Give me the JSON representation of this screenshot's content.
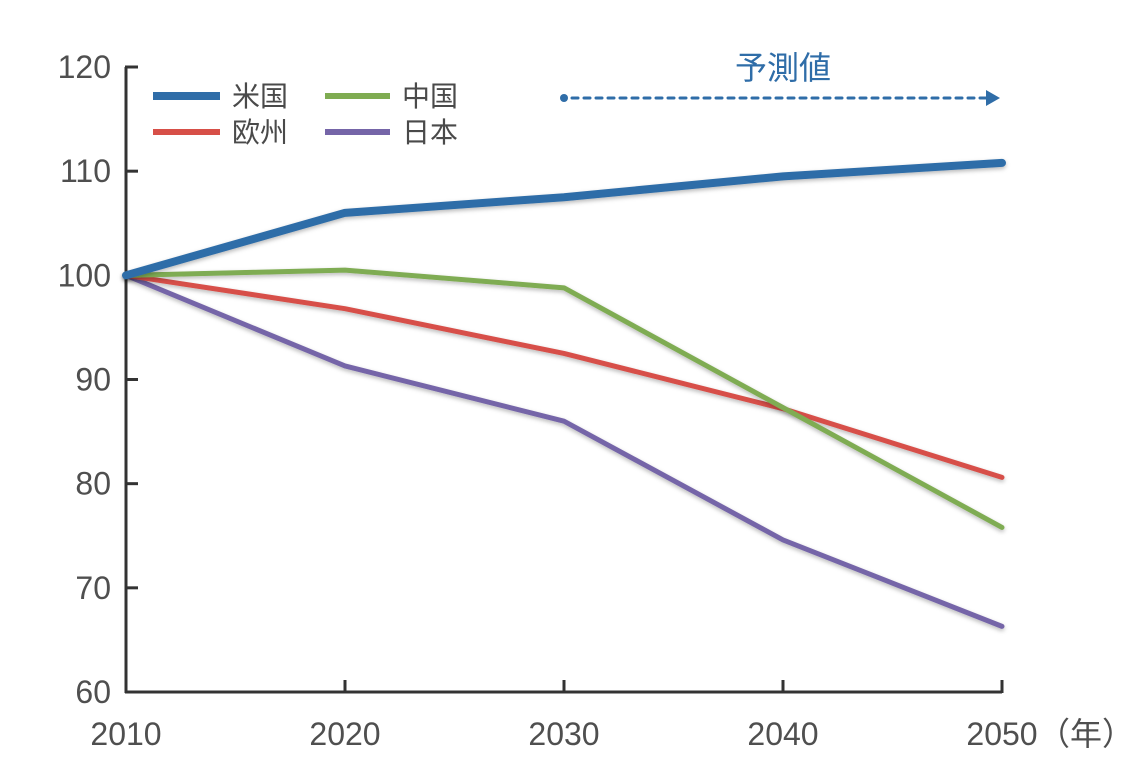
{
  "chart_data": {
    "type": "line",
    "x": [
      2010,
      2020,
      2030,
      2040,
      2050
    ],
    "xticks": [
      "2010",
      "2020",
      "2030",
      "2040",
      "2050"
    ],
    "yticks": [
      "60",
      "70",
      "80",
      "90",
      "100",
      "110",
      "120"
    ],
    "ylim": [
      60,
      120
    ],
    "grid": false,
    "legend_position": "top-left",
    "x_unit_label": "（年）",
    "forecast_label": "予測値",
    "forecast_range": [
      2030,
      2050
    ],
    "series": [
      {
        "name": "米国",
        "color": "#2f6da8",
        "values": [
          100,
          106,
          107.5,
          109.5,
          110.8
        ]
      },
      {
        "name": "中国",
        "color": "#7fac52",
        "values": [
          100,
          100.5,
          98.8,
          87.3,
          75.8
        ]
      },
      {
        "name": "欧州",
        "color": "#d74f48",
        "values": [
          100,
          96.8,
          92.5,
          87.2,
          80.6
        ]
      },
      {
        "name": "日本",
        "color": "#7565a8",
        "values": [
          100,
          91.3,
          86,
          74.6,
          66.3
        ]
      }
    ],
    "colors": {
      "axis": "#333333",
      "tick_text": "#4f4f4f",
      "forecast": "#2f6da8"
    }
  }
}
